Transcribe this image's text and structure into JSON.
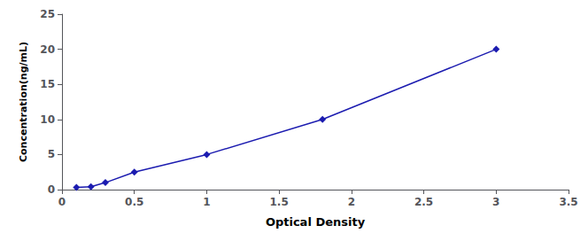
{
  "chart_data": {
    "type": "line",
    "x": [
      0.1,
      0.2,
      0.3,
      0.5,
      1.0,
      1.8,
      3.0
    ],
    "values": [
      0.3,
      0.4,
      1.0,
      2.5,
      5.0,
      10.0,
      20.0
    ],
    "color": "#1c1cb0",
    "marker": "diamond",
    "xlabel": "Optical Density",
    "ylabel": "Concentration(ng/mL)",
    "xlim": [
      0,
      3.5
    ],
    "ylim": [
      0,
      25
    ],
    "xticks": [
      0,
      0.5,
      1.0,
      1.5,
      2.0,
      2.5,
      3.0,
      3.5
    ],
    "yticks": [
      0,
      5,
      10,
      15,
      20,
      25
    ],
    "grid": false
  }
}
